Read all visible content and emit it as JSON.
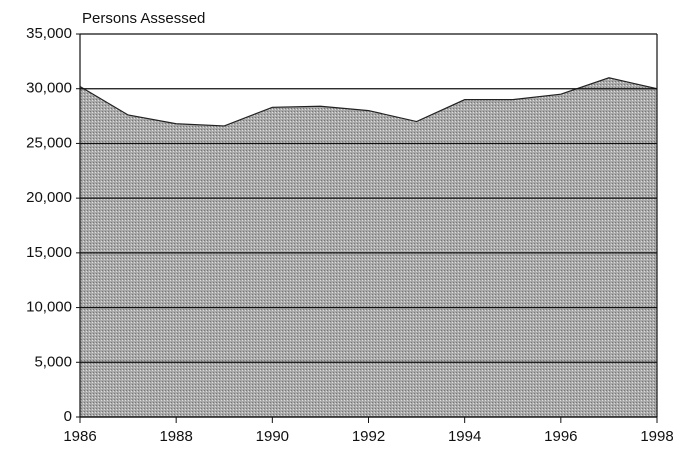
{
  "chart_data": {
    "type": "area",
    "title": "Persons Assessed",
    "x": [
      1986,
      1987,
      1988,
      1989,
      1990,
      1991,
      1992,
      1993,
      1994,
      1995,
      1996,
      1997,
      1998
    ],
    "values": [
      30200,
      27600,
      26800,
      26600,
      28300,
      28400,
      28000,
      27000,
      29000,
      29000,
      29500,
      31000,
      30000
    ],
    "color": "#a9a9a9",
    "xlim": [
      1986,
      1998
    ],
    "xticks": [
      1986,
      1988,
      1990,
      1992,
      1994,
      1996,
      1998
    ],
    "ylim": [
      0,
      35000
    ],
    "yticks": [
      0,
      {
        "value": 5000,
        "label": "5,000"
      },
      {
        "value": 10000,
        "label": "10,000"
      },
      {
        "value": 15000,
        "label": "15,000"
      },
      {
        "value": 20000,
        "label": "20,000"
      },
      {
        "value": 25000,
        "label": "25,000"
      },
      {
        "value": 30000,
        "label": "30,000"
      },
      {
        "value": 35000,
        "label": "35,000"
      }
    ],
    "grid": true
  }
}
